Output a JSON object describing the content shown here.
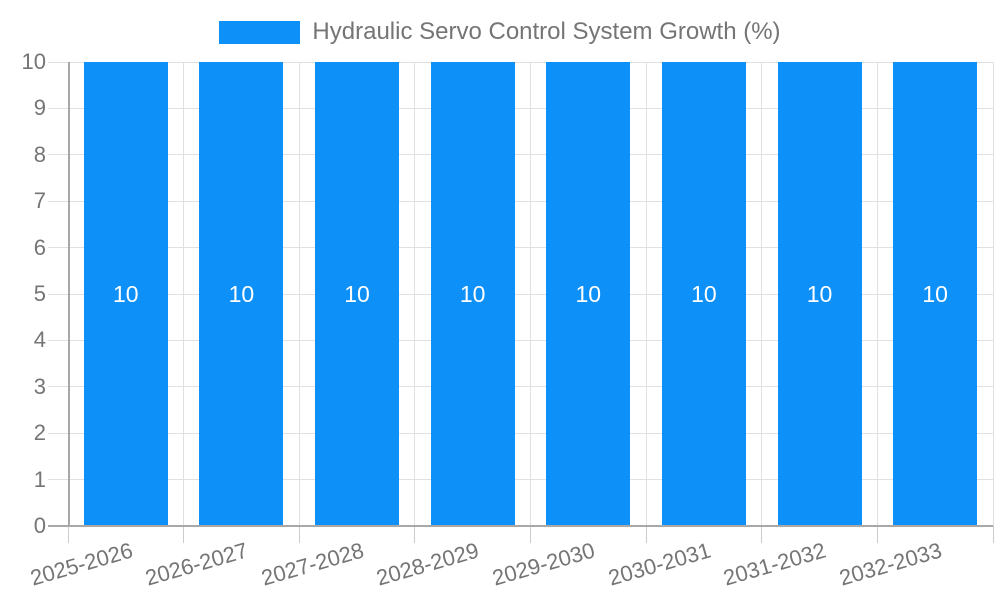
{
  "legend": {
    "label": "Hydraulic Servo Control System Growth (%)"
  },
  "chart_data": {
    "type": "bar",
    "title": "Hydraulic Servo Control System Growth (%)",
    "categories": [
      "2025-2026",
      "2026-2027",
      "2027-2028",
      "2028-2029",
      "2029-2030",
      "2030-2031",
      "2031-2032",
      "2032-2033"
    ],
    "series": [
      {
        "name": "Hydraulic Servo Control System Growth (%)",
        "values": [
          10,
          10,
          10,
          10,
          10,
          10,
          10,
          10
        ]
      }
    ],
    "value_labels": [
      "10",
      "10",
      "10",
      "10",
      "10",
      "10",
      "10",
      "10"
    ],
    "xlabel": "",
    "ylabel": "",
    "ylim": [
      0,
      10
    ],
    "yticks": [
      0,
      1,
      2,
      3,
      4,
      5,
      6,
      7,
      8,
      9,
      10
    ],
    "grid": true,
    "legend_position": "top-center",
    "x_label_rotation_deg": -16,
    "colors": {
      "bar": "#0d90f8",
      "bar_value_text": "#ffffff",
      "axis_text": "#757575",
      "legend_text": "#757575",
      "gridline": "#e0e0e0",
      "axis_line": "#a8a8a8",
      "tick": "#cccccc",
      "background": "#ffffff"
    }
  }
}
